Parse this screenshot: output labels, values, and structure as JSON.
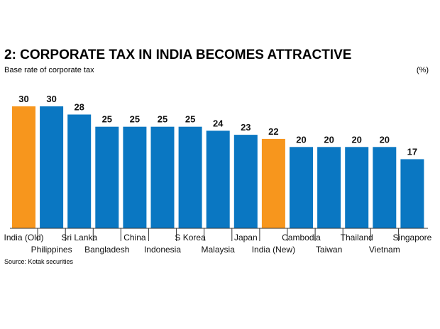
{
  "chart_data": {
    "type": "bar",
    "title": "2: CORPORATE TAX IN INDIA BECOMES ATTRACTIVE",
    "subtitle": "Base rate of corporate tax",
    "unit": "(%)",
    "source": "Source: Kotak securities",
    "categories": [
      "India (Old)",
      "Philippines",
      "Sri Lanka",
      "Bangladesh",
      "China",
      "Indonesia",
      "S Korea",
      "Malaysia",
      "Japan",
      "India (New)",
      "Cambodia",
      "Taiwan",
      "Thailand",
      "Vietnam",
      "Singapore"
    ],
    "values": [
      30,
      30,
      28,
      25,
      25,
      25,
      25,
      24,
      23,
      22,
      20,
      20,
      20,
      20,
      17
    ],
    "highlight": [
      0,
      9
    ],
    "ylim": [
      0,
      30
    ],
    "xlabel": "",
    "ylabel": "",
    "grid": false
  },
  "colors": {
    "bar": "#0a77c2",
    "highlight": "#f7961d",
    "text": "#111111",
    "axis": "#333333"
  }
}
